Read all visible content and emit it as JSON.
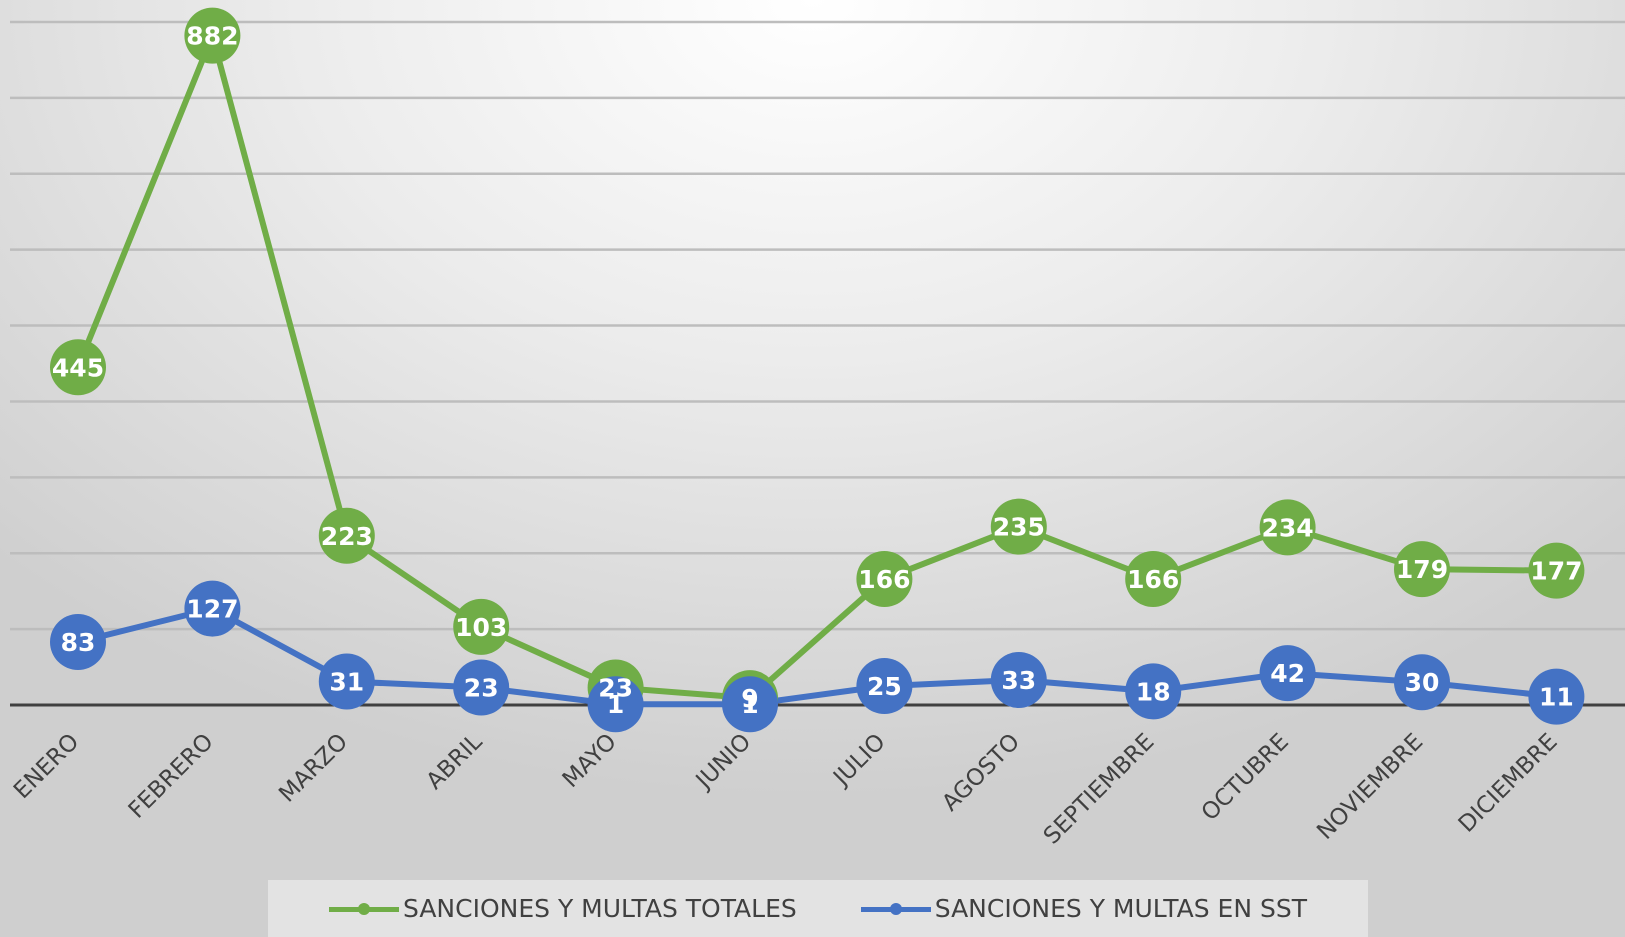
{
  "chart_data": {
    "type": "line",
    "title": "",
    "xlabel": "",
    "ylabel": "",
    "ylim": [
      0,
      900
    ],
    "grid": true,
    "legend_position": "bottom",
    "categories": [
      "ENERO",
      "FEBRERO",
      "MARZO",
      "ABRIL",
      "MAYO",
      "JUNIO",
      "JULIO",
      "AGOSTO",
      "SEPTIEMBRE",
      "OCTUBRE",
      "NOVIEMBRE",
      "DICIEMBRE"
    ],
    "series": [
      {
        "name": "SANCIONES Y MULTAS TOTALES",
        "color": "#70ad47",
        "values": [
          445,
          882,
          223,
          103,
          23,
          9,
          166,
          235,
          166,
          234,
          179,
          177
        ],
        "label_color": "#ffffff"
      },
      {
        "name": "SANCIONES Y MULTAS EN SST",
        "color": "#4472c4",
        "values": [
          83,
          127,
          31,
          23,
          1,
          1,
          25,
          33,
          18,
          42,
          30,
          11
        ],
        "label_color": "#ffffff"
      }
    ]
  },
  "legend": {
    "items": [
      {
        "label": "SANCIONES Y MULTAS TOTALES",
        "color": "#70ad47"
      },
      {
        "label": "SANCIONES Y MULTAS EN SST",
        "color": "#4472c4"
      }
    ]
  }
}
